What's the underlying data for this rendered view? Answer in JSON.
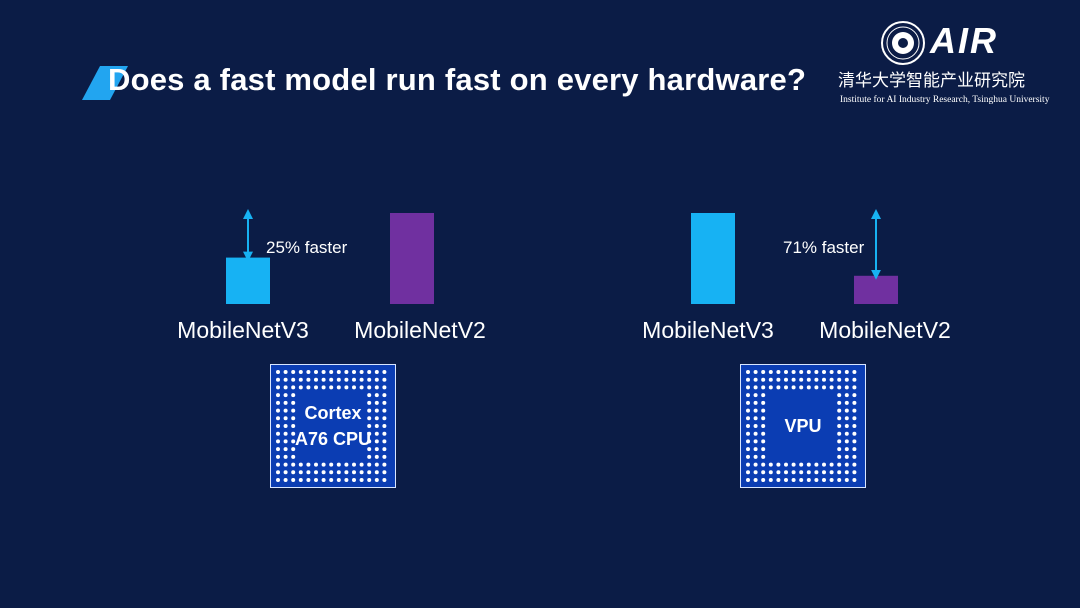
{
  "slide": {
    "title": "Does a fast model run fast on every hardware?"
  },
  "logo": {
    "name": "AIR",
    "institute_cn": "清华大学智能产业研究院",
    "institute_en": "Institute for AI Industry Research, Tsinghua University"
  },
  "colors": {
    "background": "#0b1c46",
    "mobilenetv3": "#17b2f3",
    "mobilenetv2": "#7030a0",
    "accent": "#22a5f0",
    "chip": "#0b3db3"
  },
  "groups": [
    {
      "hardware": "Cortex\nA76 CPU",
      "speed_label": "25% faster",
      "bars": [
        {
          "label": "MobileNetV3",
          "value": 0.51
        },
        {
          "label": "MobileNetV2",
          "value": 1.0
        }
      ]
    },
    {
      "hardware": "VPU",
      "speed_label": "71% faster",
      "bars": [
        {
          "label": "MobileNetV3",
          "value": 1.0
        },
        {
          "label": "MobileNetV2",
          "value": 0.31
        }
      ]
    }
  ]
}
